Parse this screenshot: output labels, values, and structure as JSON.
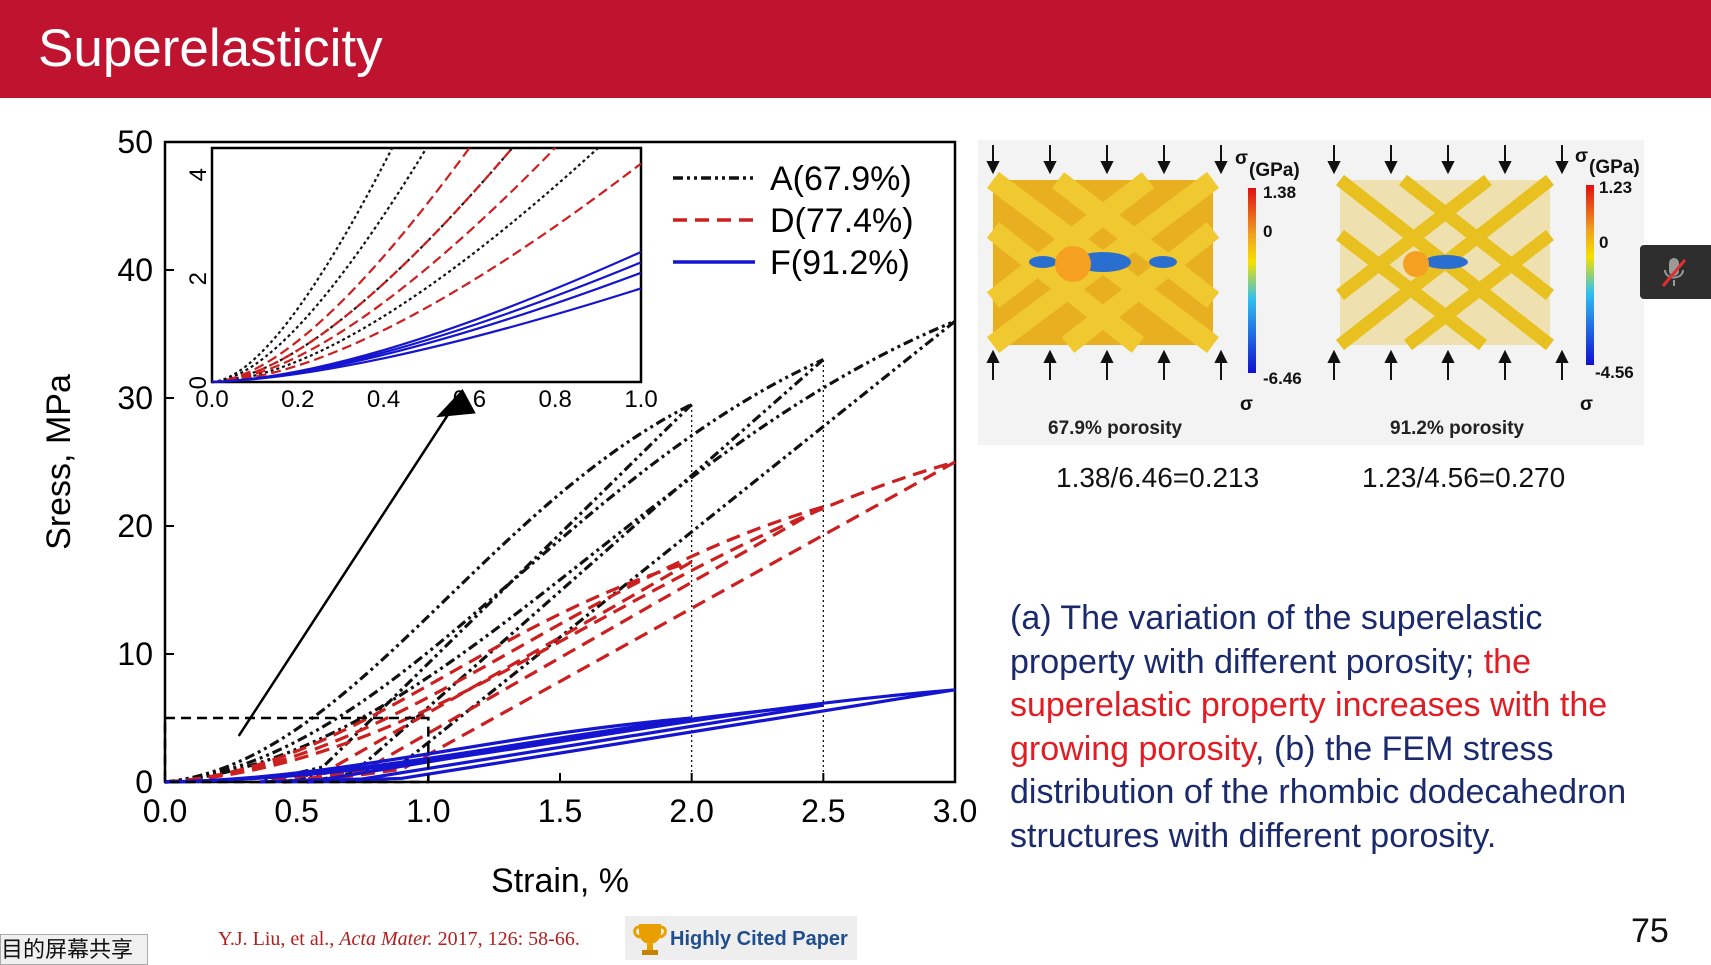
{
  "header": {
    "title": "Superelasticity",
    "color": "#bf1330"
  },
  "chart_data": {
    "type": "line",
    "xlabel": "Strain, %",
    "ylabel": "Sress, MPa",
    "xlim": [
      0,
      3.0
    ],
    "ylim": [
      0,
      50
    ],
    "xticks": [
      "0.0",
      "0.5",
      "1.0",
      "1.5",
      "2.0",
      "2.5",
      "3.0"
    ],
    "yticks": [
      "0",
      "10",
      "20",
      "30",
      "40",
      "50"
    ],
    "legend_placement": "top-right",
    "series": [
      {
        "name": "A(67.9%)",
        "color": "#111111",
        "style": "dash-dot-dot",
        "peaks": [
          [
            2.0,
            29.5
          ],
          [
            2.5,
            33
          ],
          [
            3.0,
            36
          ]
        ]
      },
      {
        "name": "D(77.4%)",
        "color": "#cc1f1f",
        "style": "dashed",
        "peaks": [
          [
            2.0,
            17.2
          ],
          [
            2.5,
            21.5
          ],
          [
            3.0,
            25
          ]
        ]
      },
      {
        "name": "F(91.2%)",
        "color": "#1515d0",
        "style": "solid",
        "peaks": [
          [
            2.0,
            5
          ],
          [
            2.5,
            6
          ],
          [
            3.0,
            7.2
          ]
        ]
      }
    ],
    "inset": {
      "xlim": [
        0,
        1.0
      ],
      "ylim": [
        0,
        4.5
      ],
      "xticks": [
        "0.0",
        "0.2",
        "0.4",
        "0.6",
        "0.8",
        "1.0"
      ],
      "yticks": [
        "0",
        "2",
        "4"
      ]
    }
  },
  "fem": {
    "panels": [
      {
        "caption": "67.9% porosity",
        "unit": "(GPa)",
        "sigma": "σ",
        "max": "1.38",
        "zero": "0",
        "min": "-6.46",
        "ratio": "1.38/6.46=0.213"
      },
      {
        "caption": "91.2% porosity",
        "unit": "(GPa)",
        "sigma": "σ",
        "max": "1.23",
        "zero": "0",
        "min": "-4.56",
        "ratio": "1.23/4.56=0.270"
      }
    ]
  },
  "description": {
    "part1": "(a) The variation of the superelastic property with different porosity; ",
    "part2": "the superelastic property increases with the growing porosity",
    "part3": ", (b) the FEM stress distribution of the rhombic dodecahedron structures with different porosity."
  },
  "citation": {
    "authors": "Y.J. Liu, et al., ",
    "journal": "Acta Mater.",
    "rest": " 2017, 126: 58-66."
  },
  "badge": {
    "label": "Highly Cited Paper",
    "icon": "trophy-icon"
  },
  "page_number": "75",
  "share_tag": "目的屏幕共享",
  "mic_icon": "mic-muted-icon"
}
